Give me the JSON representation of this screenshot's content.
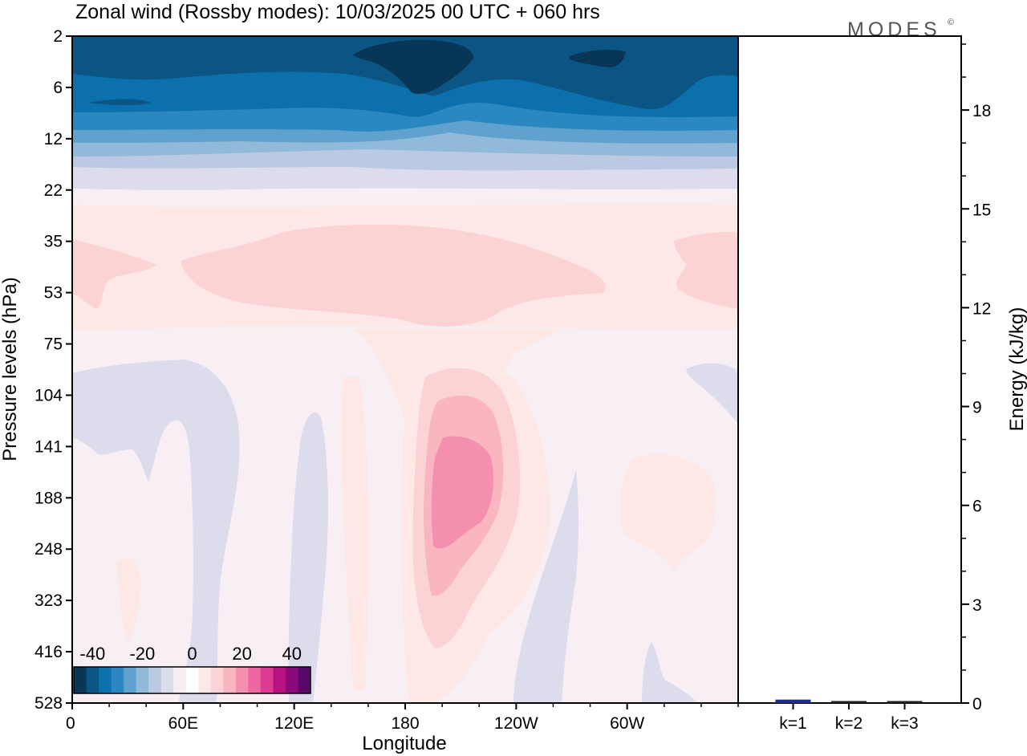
{
  "chart_data": [
    {
      "type": "heatmap",
      "title": "Zonal wind (Rossby modes):  10/03/2025  00 UTC  + 060 hrs",
      "xlabel": "Longitude",
      "ylabel": "Pressure levels (hPa)",
      "x_ticks": [
        "0",
        "60E",
        "120E",
        "180",
        "120W",
        "60W"
      ],
      "x_tick_degrees": [
        0,
        60,
        120,
        180,
        240,
        300
      ],
      "xlim": [
        0,
        360
      ],
      "y_ticks": [
        "2",
        "6",
        "12",
        "22",
        "35",
        "53",
        "75",
        "104",
        "141",
        "188",
        "248",
        "323",
        "416",
        "528"
      ],
      "y_scale": "level-index (top = 2 hPa, bottom = 528 hPa)",
      "colorbar": {
        "labels": [
          "-40",
          "-20",
          "0",
          "20",
          "40"
        ],
        "label_values": [
          -40,
          -20,
          0,
          20,
          40
        ],
        "levels": [
          -45,
          -40,
          -35,
          -30,
          -25,
          -20,
          -15,
          -10,
          -5,
          0,
          5,
          10,
          15,
          20,
          25,
          30,
          35,
          40,
          45
        ],
        "colors": [
          "#083657",
          "#0a5584",
          "#0c70ad",
          "#2b87c0",
          "#5ea2cd",
          "#91b9d9",
          "#bcc9e2",
          "#dcdced",
          "#f5eef4",
          "#ffffff",
          "#fde8e6",
          "#fbd3d4",
          "#f9b6c1",
          "#f58fae",
          "#ee66a2",
          "#dc3a95",
          "#b91283",
          "#8a0b78",
          "#5a066a"
        ]
      },
      "features": [
        {
          "region": "upper stratosphere 2-10 hPa",
          "value": -40,
          "note": "strong easterlies, minimum near 180"
        },
        {
          "region": "35-60 hPa, 60E-140W",
          "value": 10
        },
        {
          "region": "140-250 hPa near 160W",
          "value": 25,
          "note": "westerly maximum"
        },
        {
          "region": "lower levels 0-60E, 120E, 90W",
          "value": -5
        }
      ]
    },
    {
      "type": "bar",
      "ylabel": "Energy (kJ/kg)",
      "categories": [
        "k=1",
        "k=2",
        "k=3"
      ],
      "values": [
        0.08,
        0.03,
        0.01
      ],
      "ylim": [
        0,
        20
      ],
      "y_ticks": [
        "0",
        "3",
        "6",
        "9",
        "12",
        "15",
        "18"
      ],
      "y_tick_values": [
        0,
        3,
        6,
        9,
        12,
        15,
        18
      ]
    }
  ],
  "logo": "MODES",
  "logo_mark": "©"
}
